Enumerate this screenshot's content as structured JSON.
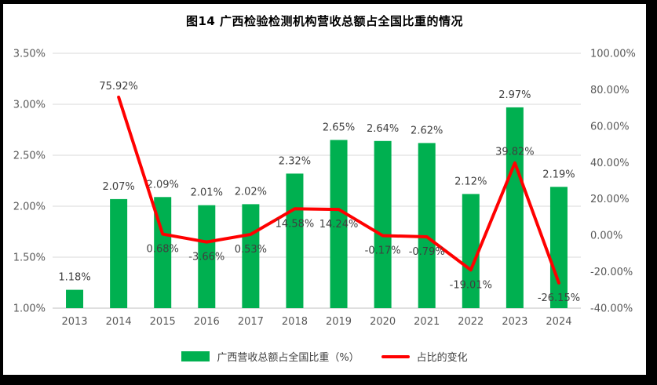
{
  "title": "图14 广西检验检测机构营收总额占全国比重的情况",
  "colors": {
    "bar": "#00B050",
    "line": "#FF0000",
    "gridline": "#D9D9D9",
    "axis_line": "#BFBFBF",
    "axis_text": "#595959",
    "label_text": "#3F3F3F",
    "frame": "#000000",
    "background": "#FFFFFF"
  },
  "legend": [
    {
      "label": "广西营收总额占全国比重（%）",
      "type": "bar",
      "color": "#00B050"
    },
    {
      "label": "占比的变化",
      "type": "line",
      "color": "#FF0000"
    }
  ],
  "chart_data": {
    "type": "combo-bar-line",
    "title": "图14 广西检验检测机构营收总额占全国比重的情况",
    "categories": [
      "2013",
      "2014",
      "2015",
      "2016",
      "2017",
      "2018",
      "2019",
      "2020",
      "2021",
      "2022",
      "2023",
      "2024"
    ],
    "series": [
      {
        "name": "广西营收总额占全国比重（%）",
        "type": "bar",
        "axis": "left",
        "color": "#00B050",
        "values": [
          1.18,
          2.07,
          2.09,
          2.01,
          2.02,
          2.32,
          2.65,
          2.64,
          2.62,
          2.12,
          2.97,
          2.19
        ],
        "labels": [
          "1.18%",
          "2.07%",
          "2.09%",
          "2.01%",
          "2.02%",
          "2.32%",
          "2.65%",
          "2.64%",
          "2.62%",
          "2.12%",
          "2.97%",
          "2.19%"
        ]
      },
      {
        "name": "占比的变化",
        "type": "line",
        "axis": "right",
        "color": "#FF0000",
        "values": [
          null,
          75.92,
          0.68,
          -3.66,
          0.53,
          14.58,
          14.24,
          -0.17,
          -0.79,
          -19.01,
          39.82,
          -26.15
        ],
        "labels": [
          null,
          "75.92%",
          "0.68%",
          "-3.66%",
          "0.53%",
          "14.58%",
          "14.24%",
          "-0.17%",
          "-0.79%",
          "-19.01%",
          "39.82%",
          "-26.15%"
        ],
        "label_side": [
          null,
          "above",
          "below",
          "below",
          "below",
          "below",
          "below",
          "below",
          "below",
          "below",
          "above",
          "below"
        ]
      }
    ],
    "left_axis": {
      "min": 1.0,
      "max": 3.5,
      "step": 0.5,
      "ticks": [
        "3.50%",
        "3.00%",
        "2.50%",
        "2.00%",
        "1.50%",
        "1.00%"
      ]
    },
    "right_axis": {
      "min": -40,
      "max": 100,
      "step": 20,
      "ticks": [
        "100.00%",
        "80.00%",
        "60.00%",
        "40.00%",
        "20.00%",
        "0.00%",
        "-20.00%",
        "-40.00%"
      ]
    },
    "grid": true,
    "legend_position": "bottom"
  }
}
